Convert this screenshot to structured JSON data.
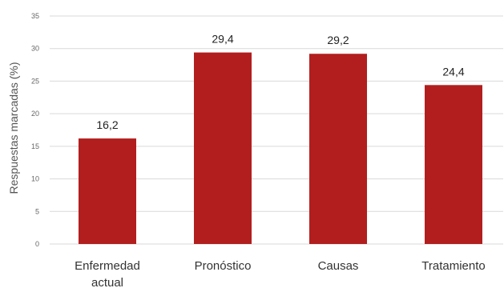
{
  "chart_data": {
    "type": "bar",
    "ylabel": "Respuestas marcadas (%)",
    "ylim": [
      0,
      35
    ],
    "yticks": [
      0,
      5,
      10,
      15,
      20,
      25,
      30,
      35
    ],
    "grid": true,
    "categories": [
      [
        "Enfermedad",
        "actual"
      ],
      [
        "Pronóstico"
      ],
      [
        "Causas"
      ],
      [
        "Tratamiento"
      ]
    ],
    "values": [
      16.2,
      29.4,
      29.2,
      24.4
    ],
    "data_labels": [
      "16,2",
      "29,4",
      "29,2",
      "24,4"
    ],
    "bar_color": "#b21e1e",
    "grid_color": "#d9d9d9"
  }
}
